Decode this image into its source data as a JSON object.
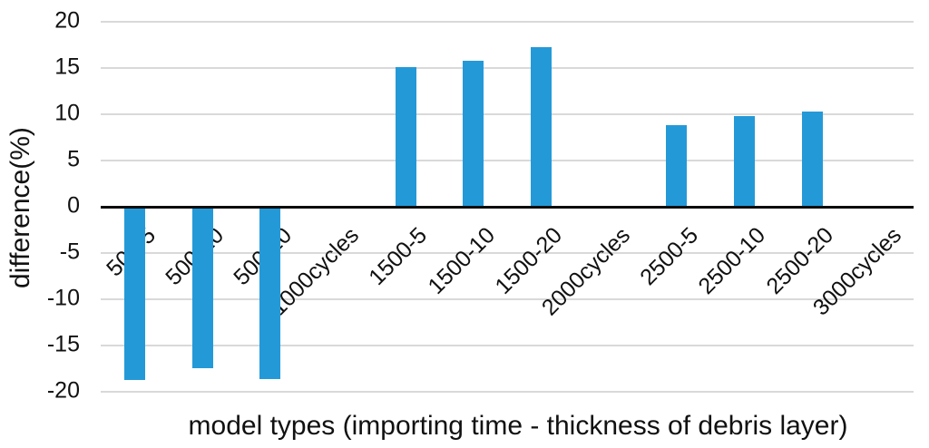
{
  "chart_data": {
    "type": "bar",
    "title": "",
    "xlabel": "model types (importing time - thickness of debris layer)",
    "ylabel": "difference(%)",
    "categories": [
      "500-5",
      "500-10",
      "500-20",
      "1000cycles",
      "1500-5",
      "1500-10",
      "1500-20",
      "2000cycles",
      "2500-5",
      "2500-10",
      "2500-20",
      "3000cycles"
    ],
    "values": [
      -18.6,
      -17.4,
      -18.5,
      0,
      15.1,
      15.8,
      17.3,
      0,
      8.8,
      9.8,
      10.3,
      0
    ],
    "yticks": [
      20,
      15,
      10,
      5,
      0,
      -5,
      -10,
      -15,
      -20
    ],
    "ylim": [
      -20,
      20
    ],
    "grid": true,
    "legend": null,
    "colors": {
      "bar": "#2499d8",
      "gridline": "#d9d9d9",
      "axis": "#0d0d0d",
      "text": "#111111",
      "background": "#ffffff"
    }
  }
}
